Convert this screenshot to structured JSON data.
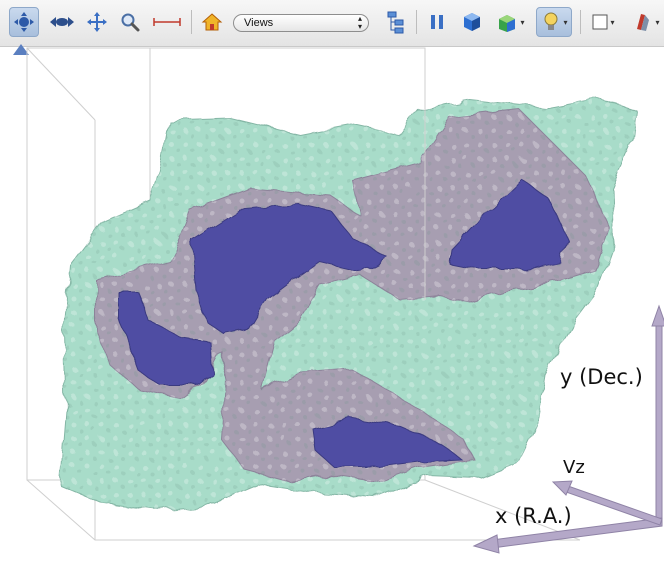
{
  "toolbar": {
    "tools": [
      {
        "name": "rotate-tool",
        "active": true
      },
      {
        "name": "pan-tool",
        "active": false
      },
      {
        "name": "move-tool",
        "active": false
      },
      {
        "name": "zoom-tool",
        "active": false
      },
      {
        "name": "measure-tool",
        "active": false
      },
      {
        "name": "home-view",
        "active": false
      },
      {
        "name": "model-tree",
        "active": false
      },
      {
        "name": "pause-animation",
        "active": false
      },
      {
        "name": "render-mode",
        "active": false
      },
      {
        "name": "view-projection",
        "active": false
      },
      {
        "name": "lighting",
        "active": true
      },
      {
        "name": "background-color",
        "active": false
      },
      {
        "name": "cross-section",
        "active": false
      }
    ],
    "views_select": {
      "value": "Views"
    }
  },
  "scene": {
    "axes": {
      "y_label": "y (Dec.)",
      "vz_label": "Vz",
      "x_label": "x (R.A.)"
    },
    "colors": {
      "outer_surface": "#a8dcc9",
      "middle_surface": "#a79ab0",
      "inner_surface": "#4f4ea3",
      "axis_arrow": "#b4a8c8",
      "bounding_box": "#cfcfcf"
    }
  }
}
